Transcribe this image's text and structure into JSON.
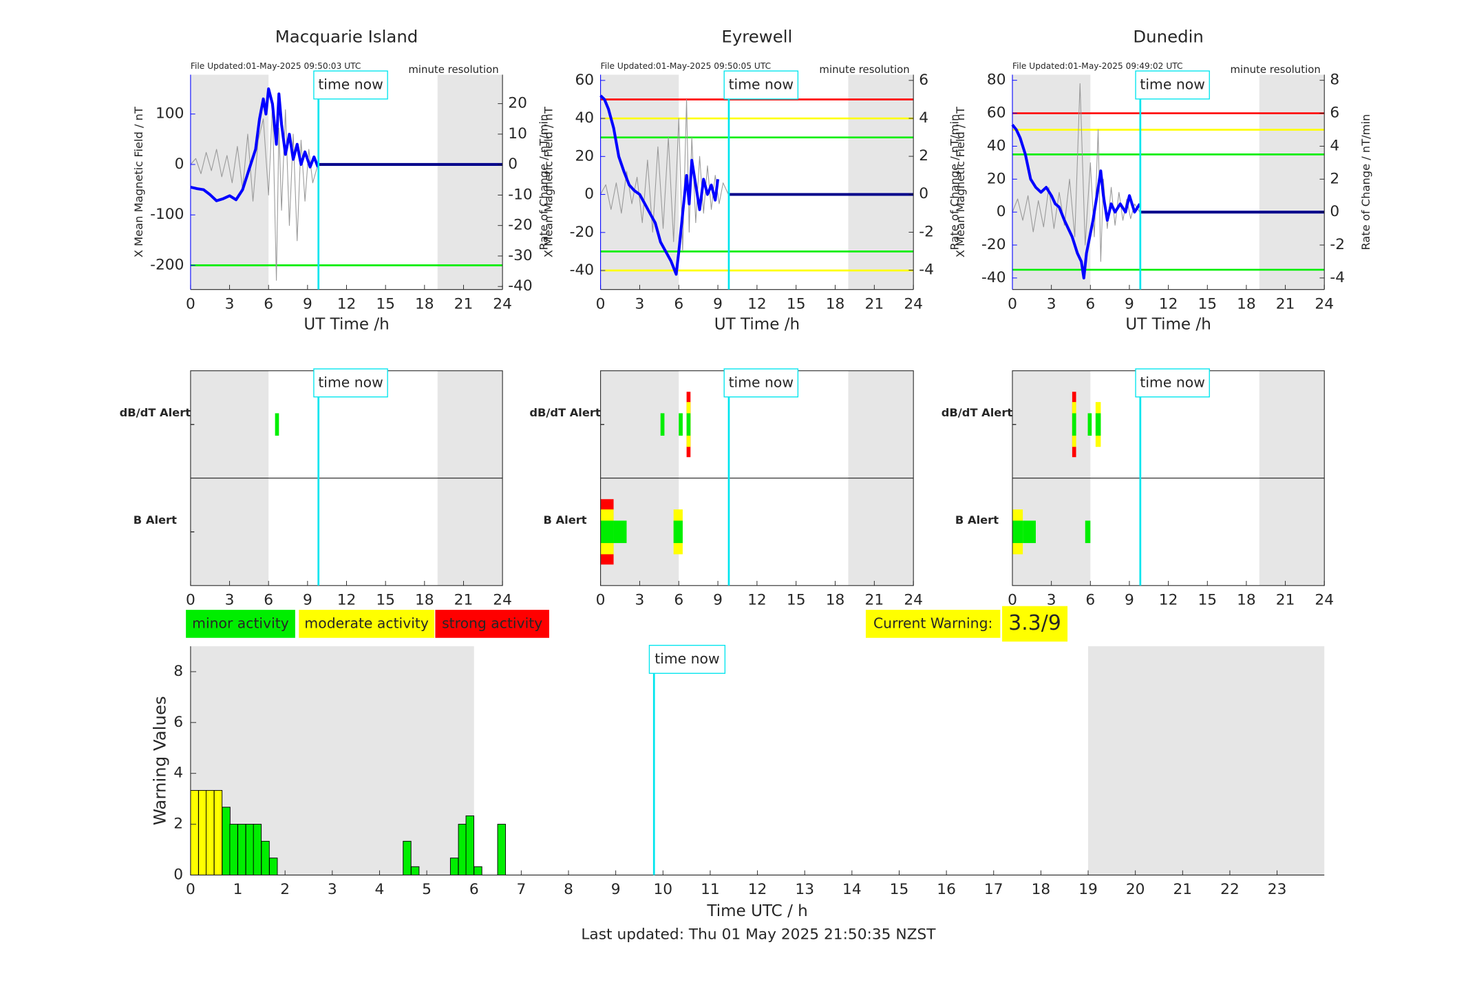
{
  "chart_data": [
    {
      "type": "line",
      "title": "Macquarie Island",
      "subtitle": "File Updated:01-May-2025 09:50:03 UTC",
      "annotation": "minute resolution",
      "xlabel": "UT Time /h",
      "ylabel": "X Mean Magnetic Field / nT",
      "y2label": "Rate of Change / nT/min",
      "xlim": [
        0,
        24
      ],
      "xticks": [
        0,
        3,
        6,
        9,
        12,
        15,
        18,
        21,
        24
      ],
      "ylim": [
        -248,
        178
      ],
      "yticks": [
        -200,
        -100,
        0,
        100
      ],
      "y2lim": [
        -41,
        29.5
      ],
      "y2ticks": [
        -40,
        -30,
        -20,
        -10,
        0,
        10,
        20
      ],
      "shaded": [
        [
          0,
          6
        ],
        [
          19,
          24
        ]
      ],
      "time_now": 9.84,
      "time_now_label": "time now",
      "hlines": [
        {
          "value": -200,
          "color": "#00ee00"
        }
      ],
      "series": [
        {
          "color": "#999999",
          "axis": "y2",
          "x": [
            0,
            0.4,
            0.8,
            1.2,
            1.6,
            2,
            2.4,
            2.8,
            3.2,
            3.6,
            4,
            4.4,
            4.8,
            5.2,
            5.6,
            6,
            6.3,
            6.6,
            6.8,
            7,
            7.3,
            7.6,
            7.9,
            8.2,
            8.5,
            8.8,
            9.1,
            9.4,
            9.8
          ],
          "values": [
            0,
            2,
            -3,
            4,
            -2,
            5,
            -4,
            3,
            -6,
            6,
            -8,
            10,
            -12,
            8,
            15,
            -10,
            20,
            -38,
            12,
            -15,
            18,
            -20,
            10,
            -25,
            8,
            -12,
            5,
            -6,
            0
          ]
        },
        {
          "color": "#0000ff",
          "x": [
            0,
            0.5,
            1,
            1.5,
            2,
            2.5,
            3,
            3.5,
            4,
            4.5,
            5,
            5.3,
            5.6,
            5.8,
            6,
            6.3,
            6.6,
            6.8,
            7,
            7.3,
            7.6,
            7.9,
            8.2,
            8.5,
            8.8,
            9.2,
            9.5,
            9.8
          ],
          "values": [
            -45,
            -48,
            -50,
            -60,
            -72,
            -68,
            -62,
            -70,
            -50,
            -10,
            30,
            90,
            130,
            100,
            150,
            120,
            40,
            140,
            80,
            20,
            60,
            10,
            40,
            0,
            25,
            -5,
            15,
            -5
          ]
        },
        {
          "color": "#00008b",
          "x": [
            9.84,
            24
          ],
          "values": [
            0,
            0
          ]
        }
      ]
    },
    {
      "type": "line",
      "title": "Eyrewell",
      "subtitle": "File Updated:01-May-2025 09:50:05 UTC",
      "annotation": "minute resolution",
      "xlabel": "UT Time /h",
      "ylabel": "X Mean Magnetic Field / nT",
      "y2label": "Rate of Change / nT/min",
      "xlim": [
        0,
        24
      ],
      "xticks": [
        0,
        3,
        6,
        9,
        12,
        15,
        18,
        21,
        24
      ],
      "ylim": [
        -50,
        63
      ],
      "yticks": [
        -40,
        -20,
        0,
        20,
        40,
        60
      ],
      "y2lim": [
        -5.02,
        6.3
      ],
      "y2ticks": [
        -4,
        -2,
        0,
        2,
        4,
        6
      ],
      "shaded": [
        [
          0,
          6
        ],
        [
          19,
          24
        ]
      ],
      "time_now": 9.84,
      "time_now_label": "time now",
      "hlines": [
        {
          "value": 50,
          "color": "#ff0000"
        },
        {
          "value": 40,
          "color": "#ffff00"
        },
        {
          "value": 30,
          "color": "#00ee00"
        },
        {
          "value": -30,
          "color": "#00ee00"
        },
        {
          "value": -40,
          "color": "#ffff00"
        }
      ],
      "series": [
        {
          "color": "#999999",
          "axis": "y2",
          "x": [
            0,
            0.4,
            0.8,
            1.2,
            1.6,
            2,
            2.4,
            2.8,
            3.2,
            3.6,
            4,
            4.4,
            4.8,
            5.2,
            5.6,
            6,
            6.3,
            6.6,
            6.8,
            7,
            7.3,
            7.6,
            7.9,
            8.2,
            8.5,
            8.8,
            9.1,
            9.4,
            9.8
          ],
          "values": [
            0,
            0.5,
            -0.8,
            0.6,
            -1,
            1.2,
            -0.5,
            0.9,
            -1.5,
            1.8,
            -2,
            2.5,
            -1.8,
            3,
            -2.5,
            4,
            -3,
            5,
            -2,
            3,
            -1.5,
            2,
            -1,
            1.5,
            -0.8,
            1,
            -0.5,
            0.6,
            0
          ]
        },
        {
          "color": "#0000ff",
          "x": [
            0,
            0.3,
            0.6,
            1,
            1.4,
            1.8,
            2.2,
            2.6,
            3,
            3.4,
            3.8,
            4.2,
            4.6,
            5,
            5.4,
            5.8,
            6,
            6.3,
            6.6,
            6.8,
            7,
            7.3,
            7.6,
            7.9,
            8.2,
            8.5,
            8.8,
            9
          ],
          "values": [
            52,
            50,
            45,
            35,
            20,
            12,
            5,
            2,
            0,
            -5,
            -10,
            -15,
            -25,
            -30,
            -35,
            -42,
            -30,
            -10,
            10,
            -5,
            18,
            5,
            -8,
            8,
            0,
            5,
            -3,
            8
          ]
        },
        {
          "color": "#00008b",
          "x": [
            9.84,
            24
          ],
          "values": [
            0,
            0
          ]
        }
      ]
    },
    {
      "type": "line",
      "title": "Dunedin",
      "subtitle": "File Updated:01-May-2025 09:49:02 UTC",
      "annotation": "minute resolution",
      "xlabel": "UT Time /h",
      "ylabel": "X Mean Magnetic Field / nT",
      "y2label": "Rate of Change / nT/min",
      "xlim": [
        0,
        24
      ],
      "xticks": [
        0,
        3,
        6,
        9,
        12,
        15,
        18,
        21,
        24
      ],
      "ylim": [
        -47,
        83.4
      ],
      "yticks": [
        -40,
        -20,
        0,
        20,
        40,
        60,
        80
      ],
      "y2lim": [
        -4.7,
        8.34
      ],
      "y2ticks": [
        -4,
        -2,
        0,
        2,
        4,
        6,
        8
      ],
      "shaded": [
        [
          0,
          6
        ],
        [
          19,
          24
        ]
      ],
      "time_now": 9.84,
      "time_now_label": "time now",
      "hlines": [
        {
          "value": 60,
          "color": "#ff0000"
        },
        {
          "value": 50,
          "color": "#ffff00"
        },
        {
          "value": 35,
          "color": "#00ee00"
        },
        {
          "value": -35,
          "color": "#00ee00"
        }
      ],
      "series": [
        {
          "color": "#999999",
          "axis": "y2",
          "x": [
            0,
            0.4,
            0.8,
            1.2,
            1.6,
            2,
            2.4,
            2.8,
            3.2,
            3.6,
            4,
            4.4,
            4.8,
            5.2,
            5.6,
            6,
            6.3,
            6.6,
            6.8,
            7,
            7.3,
            7.6,
            7.9,
            8.2,
            8.5,
            8.8,
            9.1,
            9.4,
            9.8
          ],
          "values": [
            0,
            0.8,
            -0.5,
            1,
            -1.2,
            0.7,
            -0.9,
            1.5,
            -1,
            1.2,
            -0.8,
            2,
            -1.5,
            7.8,
            -2,
            3,
            -1.5,
            5,
            -3,
            2,
            -1,
            1.5,
            -0.8,
            1.2,
            -0.5,
            0.8,
            -0.4,
            0.5,
            0
          ]
        },
        {
          "color": "#0000ff",
          "x": [
            0,
            0.3,
            0.6,
            1,
            1.4,
            1.8,
            2.2,
            2.6,
            3,
            3.3,
            3.6,
            4,
            4.3,
            4.6,
            5,
            5.3,
            5.5,
            5.7,
            6.2,
            6.5,
            6.8,
            7,
            7.3,
            7.6,
            7.9,
            8.3,
            8.7,
            9,
            9.4,
            9.8
          ],
          "values": [
            53,
            50,
            45,
            35,
            20,
            15,
            12,
            15,
            10,
            5,
            3,
            -5,
            -10,
            -15,
            -25,
            -30,
            -40,
            -25,
            -5,
            10,
            25,
            10,
            -5,
            5,
            0,
            5,
            0,
            10,
            0,
            5
          ]
        },
        {
          "color": "#00008b",
          "x": [
            9.84,
            24
          ],
          "values": [
            0,
            0
          ]
        }
      ]
    },
    {
      "type": "alert",
      "xlim": [
        0,
        24
      ],
      "xticks": [
        0,
        3,
        6,
        9,
        12,
        15,
        18,
        21,
        24
      ],
      "shaded": [
        [
          0,
          6
        ],
        [
          19,
          24
        ]
      ],
      "time_now": 9.84,
      "time_now_label": "time now",
      "level_colors": [
        "#00ee00",
        "#ffff00",
        "#ff0000"
      ],
      "rows": [
        {
          "label": "dB/dT Alert",
          "color": "#000000",
          "blocks": [
            {
              "start": 6.5,
              "end": 6.8,
              "level": 1
            }
          ]
        },
        {
          "label": "B Alert",
          "color": "#0000ff",
          "blocks": []
        }
      ]
    },
    {
      "type": "alert",
      "xlim": [
        0,
        24
      ],
      "xticks": [
        0,
        3,
        6,
        9,
        12,
        15,
        18,
        21,
        24
      ],
      "shaded": [
        [
          0,
          6
        ],
        [
          19,
          24
        ]
      ],
      "time_now": 9.84,
      "time_now_label": "time now",
      "level_colors": [
        "#00ee00",
        "#ffff00",
        "#ff0000"
      ],
      "rows": [
        {
          "label": "dB/dT Alert",
          "color": "#000000",
          "blocks": [
            {
              "start": 4.6,
              "end": 4.9,
              "level": 1
            },
            {
              "start": 6.0,
              "end": 6.3,
              "level": 1
            },
            {
              "start": 6.6,
              "end": 6.9,
              "level": 3
            }
          ]
        },
        {
          "label": "B Alert",
          "color": "#0000ff",
          "blocks": [
            {
              "start": 0,
              "end": 1,
              "level": 3
            },
            {
              "start": 1,
              "end": 2,
              "level": 1
            },
            {
              "start": 5.6,
              "end": 6.3,
              "level": 2
            }
          ]
        }
      ]
    },
    {
      "type": "alert",
      "xlim": [
        0,
        24
      ],
      "xticks": [
        0,
        3,
        6,
        9,
        12,
        15,
        18,
        21,
        24
      ],
      "shaded": [
        [
          0,
          6
        ],
        [
          19,
          24
        ]
      ],
      "time_now": 9.84,
      "time_now_label": "time now",
      "level_colors": [
        "#00ee00",
        "#ffff00",
        "#ff0000"
      ],
      "rows": [
        {
          "label": "dB/dT Alert",
          "color": "#000000",
          "blocks": [
            {
              "start": 4.6,
              "end": 4.9,
              "level": 3
            },
            {
              "start": 5.8,
              "end": 6.1,
              "level": 1
            },
            {
              "start": 6.4,
              "end": 6.8,
              "level": 2
            }
          ]
        },
        {
          "label": "B Alert",
          "color": "#0000ff",
          "blocks": [
            {
              "start": 0,
              "end": 0.8,
              "level": 2
            },
            {
              "start": 0.8,
              "end": 1.8,
              "level": 1
            },
            {
              "start": 5.6,
              "end": 6.0,
              "level": 1
            }
          ]
        }
      ]
    },
    {
      "type": "bar",
      "xlabel": "Time UTC / h",
      "ylabel": "Warning Values",
      "xlim": [
        0,
        24
      ],
      "xticks": [
        0,
        1,
        2,
        3,
        4,
        5,
        6,
        7,
        8,
        9,
        10,
        11,
        12,
        13,
        14,
        15,
        16,
        17,
        18,
        19,
        20,
        21,
        22,
        23
      ],
      "ylim": [
        0,
        9
      ],
      "yticks": [
        0,
        2,
        4,
        6,
        8
      ],
      "shaded": [
        [
          0,
          6
        ],
        [
          19,
          24
        ]
      ],
      "time_now": 9.81,
      "time_now_label": "time now",
      "x": [
        0,
        0.17,
        0.33,
        0.5,
        0.67,
        0.83,
        1,
        1.17,
        1.33,
        1.5,
        1.67,
        4.5,
        4.67,
        5.5,
        5.67,
        5.83,
        6,
        6.5
      ],
      "values": [
        3.33,
        3.33,
        3.33,
        3.33,
        2.67,
        2,
        2,
        2,
        2,
        1.33,
        0.67,
        1.33,
        0.33,
        0.67,
        2,
        2.33,
        0.33,
        2
      ],
      "colors": [
        "#ffff00",
        "#ffff00",
        "#ffff00",
        "#ffff00",
        "#00ee00",
        "#00ee00",
        "#00ee00",
        "#00ee00",
        "#00ee00",
        "#00ee00",
        "#00ee00",
        "#00ee00",
        "#00ee00",
        "#00ee00",
        "#00ee00",
        "#00ee00",
        "#00ee00",
        "#00ee00"
      ],
      "legend": [
        {
          "name": "minor activity",
          "color": "#00ee00"
        },
        {
          "name": "moderate activity",
          "color": "#ffff00"
        },
        {
          "name": "strong activity",
          "color": "#ff0000"
        }
      ],
      "current_warning_label": "Current Warning:",
      "current_warning": "3.3/9",
      "footer": "Last updated: Thu 01 May 2025 21:50:35 NZST"
    }
  ]
}
